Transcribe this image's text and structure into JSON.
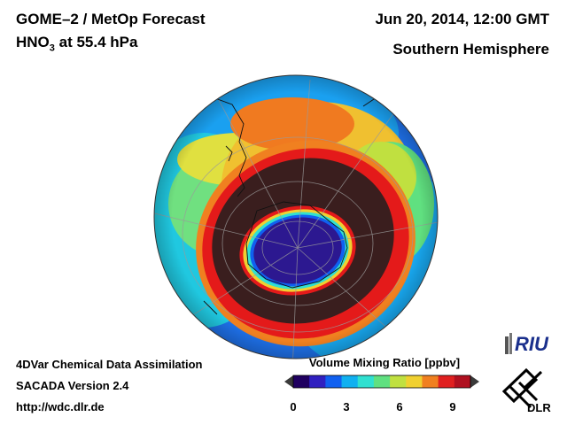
{
  "header": {
    "title_line1": "GOME–2 / MetOp Forecast",
    "title_line2_species": "HNO",
    "title_line2_sub": "3",
    "title_line2_rest": " at 55.4 hPa",
    "datetime": "Jun 20, 2014, 12:00 GMT",
    "region": "Southern Hemisphere"
  },
  "footer": {
    "line1": "4DVar Chemical Data Assimilation",
    "line2": "SACADA Version 2.4",
    "line3": "http://wdc.dlr.de"
  },
  "colorbar": {
    "title": "Volume Mixing Ratio [ppbv]",
    "ticks": [
      "0",
      "3",
      "6",
      "9"
    ],
    "range": [
      0,
      10.5
    ],
    "colors": [
      "#200060",
      "#3020c0",
      "#1060f0",
      "#10b0f0",
      "#30e0d0",
      "#60e080",
      "#c0e040",
      "#f0d030",
      "#f08020",
      "#e02020",
      "#b01020"
    ]
  },
  "logos": {
    "riu": "RIU",
    "dlr": "DLR"
  },
  "colors": {
    "ocean_low": "#2a78e6",
    "vortex_core": "#2c1890",
    "collar": "#3a1e1e",
    "ring_red": "#e41a1a"
  }
}
